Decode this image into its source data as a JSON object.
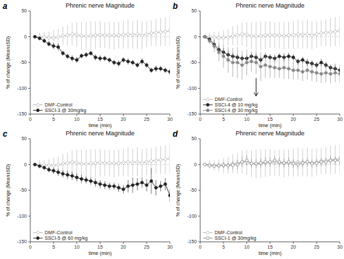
{
  "chart_data": [
    {
      "type": "line",
      "title": "Phrenic nerve Magnitude",
      "xlabel": "time (min)",
      "ylabel": "% of change (Mean±SD)",
      "xlim": [
        0,
        30
      ],
      "ylim": [
        -150,
        50
      ],
      "xticks": [
        0,
        5,
        10,
        15,
        20,
        25,
        30
      ],
      "yticks": [
        -150,
        -100,
        -50,
        0,
        50
      ],
      "grid": false,
      "legend": "lower left",
      "x": [
        1,
        2,
        3,
        4,
        5,
        6,
        7,
        8,
        9,
        10,
        11,
        12,
        13,
        14,
        15,
        16,
        17,
        18,
        19,
        20,
        21,
        22,
        23,
        24,
        25,
        26,
        27,
        28,
        29,
        30
      ],
      "series": [
        {
          "name": "DMF-Control",
          "color": "#b0b0b0",
          "marker": "open-diamond",
          "line_style": "solid",
          "values": [
            0,
            0,
            -1,
            -2,
            -2,
            -1,
            2,
            3,
            5,
            4,
            2,
            1,
            2,
            3,
            4,
            3,
            3,
            2,
            3,
            4,
            5,
            4,
            5,
            3,
            5,
            7,
            8,
            9,
            10,
            12
          ],
          "errors": [
            3,
            8,
            10,
            12,
            15,
            16,
            18,
            20,
            22,
            24,
            26,
            28,
            28,
            27,
            26,
            25,
            26,
            27,
            26,
            27,
            28,
            27,
            28,
            27,
            26,
            25,
            26,
            27,
            28,
            29
          ]
        },
        {
          "name": "SSCI-3 @ 30mg/kg",
          "color": "#222222",
          "marker": "circle",
          "line_style": "solid",
          "values": [
            0,
            -3,
            -8,
            -14,
            -18,
            -20,
            -32,
            -38,
            -42,
            -45,
            -37,
            -35,
            -32,
            -40,
            -42,
            -42,
            -45,
            -50,
            -52,
            -45,
            -48,
            -50,
            -55,
            -48,
            -55,
            -65,
            -62,
            -62,
            -65,
            -68
          ],
          "errors": [
            2,
            3,
            4,
            5,
            6,
            7,
            5,
            5,
            6,
            6,
            5,
            5,
            5,
            6,
            6,
            5,
            5,
            5,
            6,
            5,
            6,
            5,
            5,
            6,
            5,
            5,
            6,
            5,
            5,
            6
          ]
        }
      ],
      "annotations": [
        {
          "text": "a"
        },
        {
          "y": 0,
          "color": "#b0b0b0",
          "line_style": "dotted"
        }
      ]
    },
    {
      "type": "line",
      "title": "Phrenic nerve Magnitude",
      "xlabel": "time (min)",
      "ylabel": "% of change (Mean±SD)",
      "xlim": [
        0,
        30
      ],
      "ylim": [
        -150,
        50
      ],
      "xticks": [
        0,
        5,
        10,
        15,
        20,
        25,
        30
      ],
      "yticks": [
        -150,
        -100,
        -50,
        0,
        50
      ],
      "grid": false,
      "legend": "lower left",
      "x": [
        1,
        2,
        3,
        4,
        5,
        6,
        7,
        8,
        9,
        10,
        11,
        12,
        13,
        14,
        15,
        16,
        17,
        18,
        19,
        20,
        21,
        22,
        23,
        24,
        25,
        26,
        27,
        28,
        29,
        30
      ],
      "series": [
        {
          "name": "DMF-Control",
          "color": "#b0b0b0",
          "marker": "open-diamond",
          "line_style": "solid",
          "values": [
            0,
            0,
            -1,
            -2,
            -2,
            -1,
            2,
            3,
            5,
            4,
            2,
            1,
            2,
            3,
            4,
            3,
            3,
            2,
            3,
            4,
            5,
            4,
            5,
            3,
            5,
            7,
            8,
            9,
            10,
            12
          ],
          "errors": [
            3,
            8,
            10,
            12,
            15,
            16,
            18,
            20,
            22,
            24,
            26,
            28,
            28,
            27,
            26,
            25,
            26,
            27,
            26,
            27,
            28,
            27,
            28,
            27,
            26,
            25,
            26,
            27,
            28,
            29
          ]
        },
        {
          "name": "SSCI-4 @ 10 mg/kg",
          "color": "#222222",
          "marker": "circle",
          "line_style": "solid",
          "values": [
            0,
            -5,
            -15,
            -25,
            -30,
            -35,
            -38,
            -40,
            -42,
            -42,
            -38,
            -40,
            -45,
            -38,
            -40,
            -42,
            -38,
            -40,
            -38,
            -40,
            -48,
            -45,
            -50,
            -52,
            -55,
            -50,
            -55,
            -60,
            -62,
            -65
          ],
          "errors": [
            2,
            5,
            8,
            8,
            8,
            8,
            7,
            6,
            6,
            6,
            6,
            7,
            6,
            5,
            6,
            7,
            6,
            8,
            7,
            6,
            6,
            6,
            7,
            6,
            6,
            7,
            6,
            6,
            7,
            6
          ]
        },
        {
          "name": "SSCI-4 @ 30 mg/kg",
          "color": "#888888",
          "marker": "circle",
          "line_style": "solid",
          "values": [
            0,
            -8,
            -18,
            -30,
            -38,
            -45,
            -50,
            -50,
            -55,
            -50,
            -48,
            -50,
            -58,
            -55,
            -58,
            -60,
            -62,
            -60,
            -62,
            -65,
            -65,
            -68,
            -65,
            -68,
            -70,
            -72,
            -70,
            -72,
            -70,
            -72
          ],
          "errors": [
            2,
            6,
            12,
            18,
            22,
            25,
            28,
            30,
            28,
            25,
            20,
            22,
            28,
            25,
            22,
            20,
            18,
            22,
            20,
            18,
            18,
            18,
            18,
            18,
            18,
            18,
            18,
            18,
            18,
            18
          ]
        }
      ],
      "annotations": [
        {
          "text": "b"
        },
        {
          "y": 0,
          "color": "#b0b0b0",
          "line_style": "dotted"
        },
        {
          "x": 12,
          "y_start": -80,
          "y_end": -115
        }
      ]
    },
    {
      "type": "line",
      "title": "Phrenic nerve Magnitude",
      "xlabel": "time (min)",
      "ylabel": "% of change (Mean±SD)",
      "xlim": [
        0,
        30
      ],
      "ylim": [
        -150,
        50
      ],
      "xticks": [
        0,
        5,
        10,
        15,
        20,
        25,
        30
      ],
      "yticks": [
        -150,
        -100,
        -50,
        0,
        50
      ],
      "grid": false,
      "legend": "lower left",
      "x": [
        1,
        2,
        3,
        4,
        5,
        6,
        7,
        8,
        9,
        10,
        11,
        12,
        13,
        14,
        15,
        16,
        17,
        18,
        19,
        20,
        21,
        22,
        23,
        24,
        25,
        26,
        27,
        28,
        29,
        30
      ],
      "series": [
        {
          "name": "DMF-Control",
          "color": "#b0b0b0",
          "marker": "open-diamond",
          "line_style": "solid",
          "values": [
            0,
            0,
            -1,
            -2,
            -2,
            -1,
            2,
            3,
            5,
            4,
            2,
            1,
            2,
            3,
            4,
            3,
            3,
            2,
            3,
            4,
            5,
            4,
            5,
            3,
            5,
            7,
            8,
            9,
            10,
            12
          ],
          "errors": [
            3,
            8,
            10,
            12,
            15,
            16,
            18,
            20,
            22,
            24,
            26,
            28,
            28,
            27,
            26,
            25,
            26,
            27,
            26,
            27,
            28,
            27,
            28,
            27,
            26,
            25,
            26,
            27,
            28,
            29
          ]
        },
        {
          "name": "SSCI-5 @ 60 mg/kg",
          "color": "#222222",
          "marker": "circle",
          "line_style": "solid",
          "values": [
            0,
            -3,
            -6,
            -10,
            -12,
            -15,
            -18,
            -20,
            -22,
            -25,
            -28,
            -30,
            -32,
            -35,
            -38,
            -40,
            -42,
            -42,
            -45,
            -48,
            -42,
            -40,
            -38,
            -35,
            -40,
            -32,
            -45,
            -42,
            -38,
            -60
          ],
          "errors": [
            2,
            3,
            4,
            5,
            6,
            7,
            7,
            8,
            8,
            8,
            8,
            7,
            7,
            8,
            8,
            8,
            7,
            7,
            8,
            8,
            12,
            15,
            12,
            10,
            12,
            25,
            15,
            10,
            12,
            12
          ]
        }
      ],
      "annotations": [
        {
          "text": "c"
        },
        {
          "y": 0,
          "color": "#b0b0b0",
          "line_style": "dotted"
        }
      ]
    },
    {
      "type": "line",
      "title": "Phrenic nerve Magnitude",
      "xlabel": "time (min)",
      "ylabel": "% of change (Mean±SD)",
      "xlim": [
        0,
        30
      ],
      "ylim": [
        -150,
        50
      ],
      "xticks": [
        0,
        5,
        10,
        15,
        20,
        25,
        30
      ],
      "yticks": [
        -150,
        -100,
        -50,
        0,
        50
      ],
      "grid": false,
      "legend": "lower left",
      "x": [
        1,
        2,
        3,
        4,
        5,
        6,
        7,
        8,
        9,
        10,
        11,
        12,
        13,
        14,
        15,
        16,
        17,
        18,
        19,
        20,
        21,
        22,
        23,
        24,
        25,
        26,
        27,
        28,
        29,
        30
      ],
      "series": [
        {
          "name": "DMF-Control",
          "color": "#b0b0b0",
          "marker": "open-diamond",
          "line_style": "solid",
          "values": [
            0,
            0,
            -1,
            -2,
            -2,
            -1,
            2,
            3,
            5,
            4,
            2,
            1,
            2,
            3,
            4,
            3,
            3,
            2,
            3,
            4,
            5,
            4,
            5,
            3,
            5,
            7,
            8,
            9,
            10,
            12
          ],
          "errors": [
            3,
            8,
            10,
            12,
            15,
            16,
            18,
            20,
            22,
            24,
            26,
            28,
            28,
            27,
            26,
            25,
            26,
            27,
            26,
            27,
            28,
            27,
            28,
            27,
            26,
            25,
            26,
            27,
            28,
            29
          ]
        },
        {
          "name": "SSCI-1 @ 30mg/kg",
          "color": "#888888",
          "marker": "open-circle",
          "line_style": "solid",
          "values": [
            0,
            -2,
            -3,
            -2,
            -1,
            -2,
            -1,
            0,
            5,
            8,
            2,
            2,
            3,
            5,
            5,
            8,
            5,
            3,
            5,
            2,
            0,
            3,
            5,
            2,
            3,
            5,
            5,
            8,
            8,
            8
          ],
          "errors": [
            2,
            3,
            4,
            5,
            6,
            7,
            8,
            9,
            10,
            10,
            9,
            9,
            9,
            9,
            9,
            9,
            9,
            9,
            9,
            9,
            8,
            8,
            8,
            8,
            8,
            8,
            8,
            8,
            8,
            8
          ]
        }
      ],
      "annotations": [
        {
          "text": "d"
        },
        {
          "y": 0,
          "color": "#b0b0b0",
          "line_style": "dotted"
        }
      ]
    }
  ]
}
